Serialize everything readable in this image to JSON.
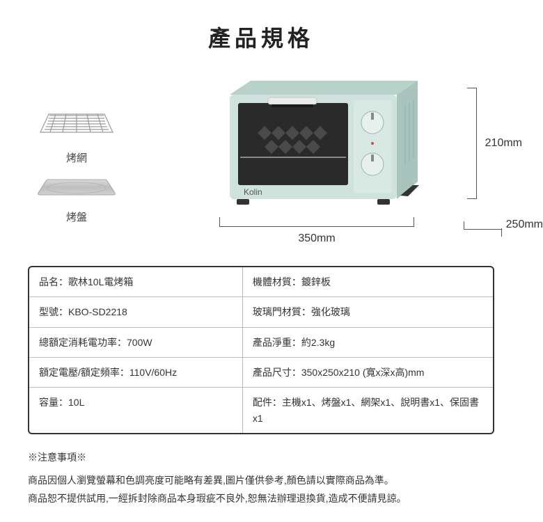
{
  "title": "產品規格",
  "accessories": {
    "rack_label": "烤網",
    "tray_label": "烤盤"
  },
  "dimensions": {
    "width": "350mm",
    "depth": "250mm",
    "height": "210mm"
  },
  "oven": {
    "brand": "Kolin",
    "body_color": "#cfe2dd",
    "body_shadow": "#a8c4bd",
    "window_color": "#2a2a2a",
    "panel_color": "#d8e8e3",
    "knob_color": "#e8f0ed"
  },
  "spec_rows": [
    {
      "left_key": "品名",
      "left_val": "歌林10L電烤箱",
      "right_key": "機體材質",
      "right_val": "鍍鋅板"
    },
    {
      "left_key": "型號",
      "left_val": "KBO-SD2218",
      "right_key": "玻璃門材質",
      "right_val": "強化玻璃"
    },
    {
      "left_key": "總額定消耗電功率",
      "left_val": "700W",
      "right_key": "產品淨重",
      "right_val": "約2.3kg"
    },
    {
      "left_key": "額定電壓/額定頻率",
      "left_val": "110V/60Hz",
      "right_key": "產品尺寸",
      "right_val": "350x250x210 (寬x深x高)mm"
    },
    {
      "left_key": "容量",
      "left_val": "10L",
      "right_key": "配件",
      "right_val": "主機x1、烤盤x1、網架x1、說明書x1、保固書x1"
    }
  ],
  "notes": {
    "title": "※注意事項※",
    "line1": "商品因個人瀏覽螢幕和色調亮度可能略有差異,圖片僅供參考,顏色請以實際商品為準。",
    "line2": "商品恕不提供試用,一經拆封除商品本身瑕疵不良外,恕無法辦理退換貨,造成不便請見諒。"
  },
  "colors": {
    "text": "#333333",
    "border": "#333333",
    "grid": "#bbbbbb",
    "bg": "#ffffff"
  }
}
